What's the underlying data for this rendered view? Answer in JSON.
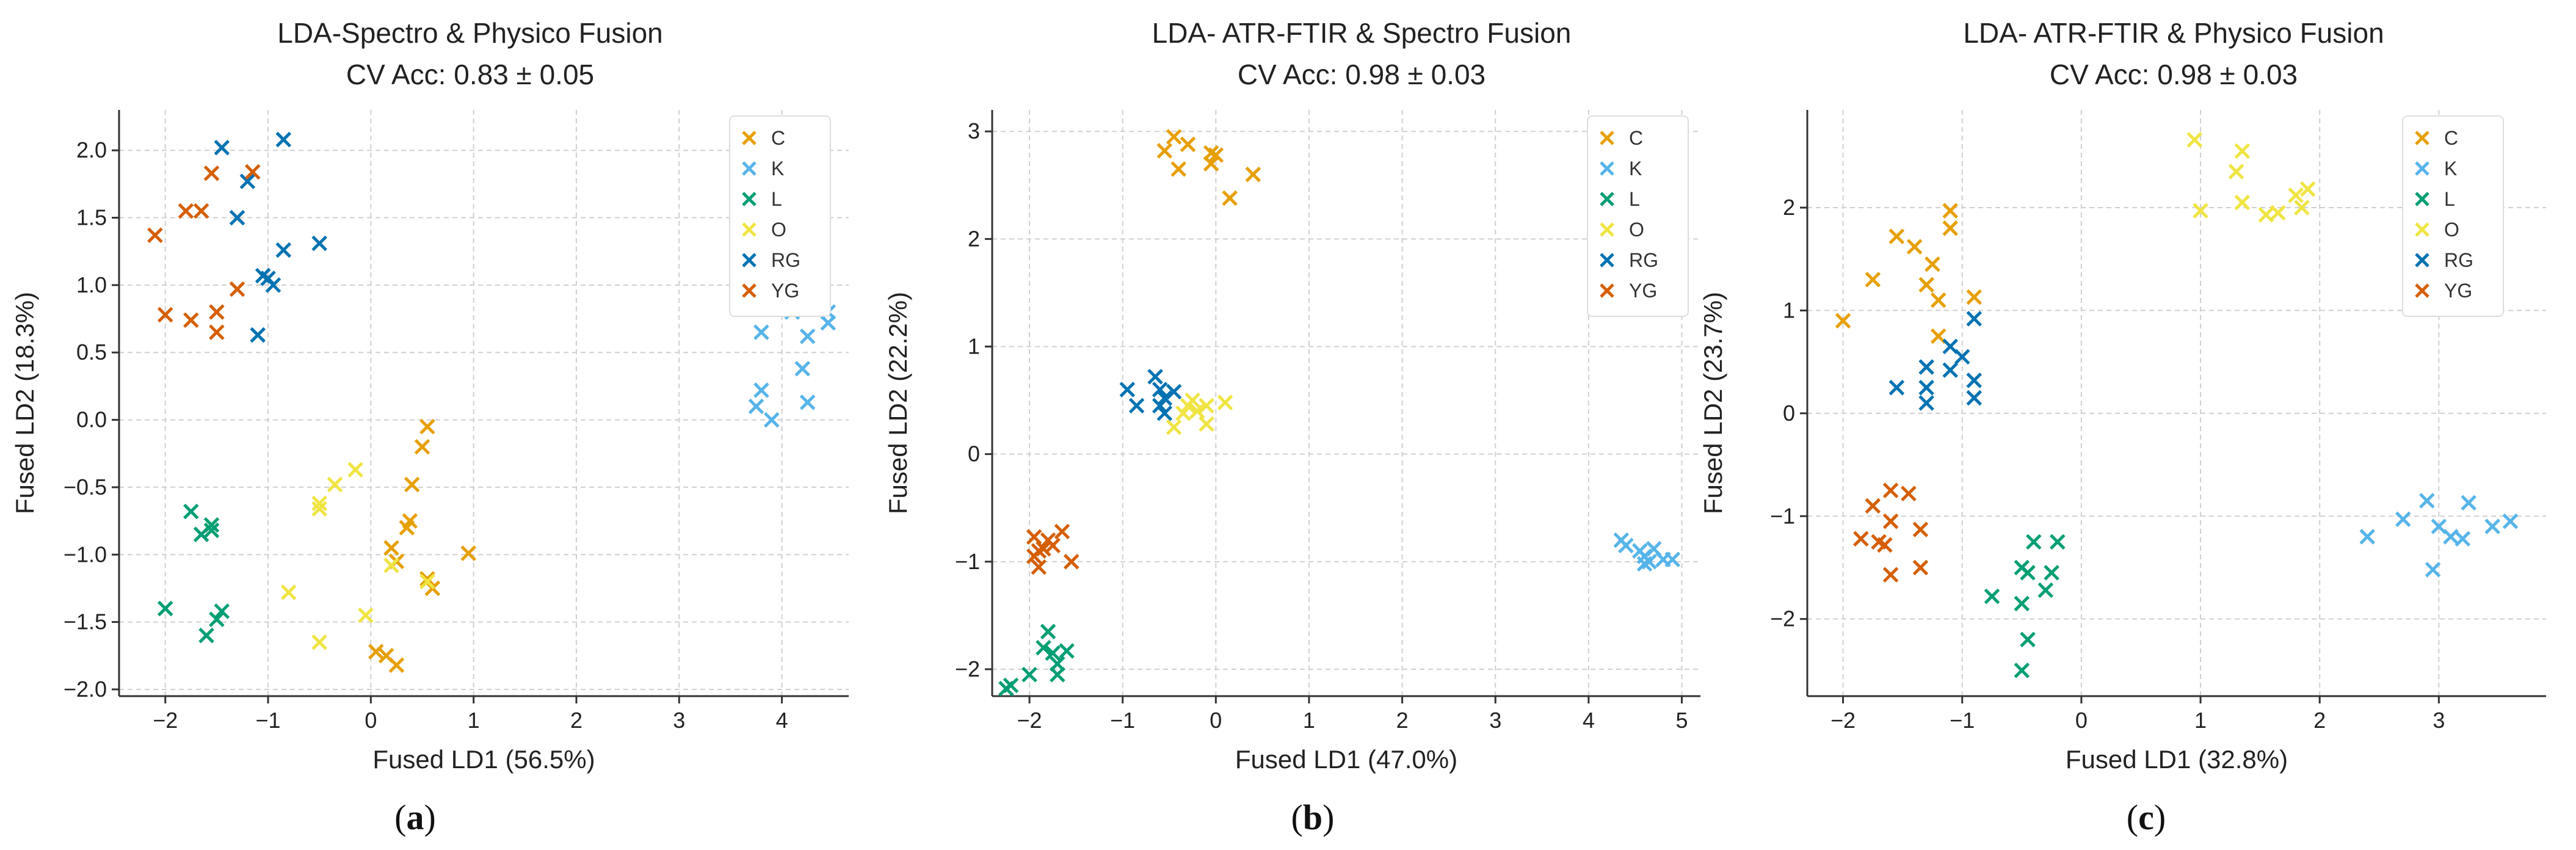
{
  "chart_data": [
    {
      "type": "scatter",
      "title": "LDA-Spectro & Physico Fusion",
      "subtitle": "CV Acc: 0.83 ± 0.05",
      "xlabel": "Fused LD1 (56.5%)",
      "ylabel": "Fused LD2 (18.3%)",
      "caption": "a",
      "xlim": [
        -2.45,
        4.65
      ],
      "ylim": [
        -2.05,
        2.3
      ],
      "xticks": [
        -2,
        -1,
        0,
        1,
        2,
        3,
        4
      ],
      "yticks": [
        -2.0,
        -1.5,
        -1.0,
        -0.5,
        0.0,
        0.5,
        1.0,
        1.5,
        2.0
      ],
      "ytick_labels": [
        "−2.0",
        "−1.5",
        "−1.0",
        "−0.5",
        "0.0",
        "0.5",
        "1.0",
        "1.5",
        "2.0"
      ],
      "xtick_labels": [
        "−2",
        "−1",
        "0",
        "1",
        "2",
        "3",
        "4"
      ],
      "grid": true,
      "legend_position": "top-right",
      "series": [
        {
          "name": "C",
          "color": "#E69F00",
          "points": [
            [
              0.55,
              -0.05
            ],
            [
              0.5,
              -0.2
            ],
            [
              0.4,
              -0.48
            ],
            [
              0.38,
              -0.75
            ],
            [
              0.35,
              -0.8
            ],
            [
              0.2,
              -0.95
            ],
            [
              0.25,
              -1.05
            ],
            [
              0.95,
              -0.99
            ],
            [
              0.55,
              -1.18
            ],
            [
              0.6,
              -1.25
            ],
            [
              0.15,
              -1.75
            ],
            [
              0.05,
              -1.72
            ],
            [
              0.25,
              -1.82
            ]
          ]
        },
        {
          "name": "K",
          "color": "#56B4E9",
          "points": [
            [
              3.8,
              0.65
            ],
            [
              4.1,
              0.8
            ],
            [
              4.25,
              0.62
            ],
            [
              4.45,
              0.72
            ],
            [
              4.45,
              0.8
            ],
            [
              4.2,
              0.38
            ],
            [
              3.75,
              0.1
            ],
            [
              3.8,
              0.22
            ],
            [
              3.9,
              0.0
            ],
            [
              4.25,
              0.13
            ]
          ]
        },
        {
          "name": "L",
          "color": "#009E73",
          "points": [
            [
              -1.75,
              -0.68
            ],
            [
              -1.65,
              -0.85
            ],
            [
              -1.55,
              -0.82
            ],
            [
              -1.55,
              -0.78
            ],
            [
              -2.0,
              -1.4
            ],
            [
              -1.5,
              -1.48
            ],
            [
              -1.45,
              -1.42
            ],
            [
              -1.6,
              -1.6
            ]
          ]
        },
        {
          "name": "O",
          "color": "#F0E442",
          "points": [
            [
              -0.35,
              -0.48
            ],
            [
              -0.15,
              -0.37
            ],
            [
              -0.5,
              -0.62
            ],
            [
              -0.5,
              -0.66
            ],
            [
              -0.8,
              -1.28
            ],
            [
              -0.05,
              -1.45
            ],
            [
              -0.5,
              -1.65
            ],
            [
              0.2,
              -1.08
            ],
            [
              0.55,
              -1.2
            ]
          ]
        },
        {
          "name": "RG",
          "color": "#0072B2",
          "points": [
            [
              -1.45,
              2.02
            ],
            [
              -0.85,
              2.08
            ],
            [
              -1.2,
              1.77
            ],
            [
              -1.3,
              1.5
            ],
            [
              -1.0,
              1.05
            ],
            [
              -1.05,
              1.07
            ],
            [
              -0.85,
              1.26
            ],
            [
              -0.5,
              1.31
            ],
            [
              -0.95,
              1.0
            ],
            [
              -1.1,
              0.63
            ]
          ]
        },
        {
          "name": "YG",
          "color": "#D55E00",
          "points": [
            [
              -1.55,
              1.83
            ],
            [
              -1.15,
              1.84
            ],
            [
              -1.65,
              1.55
            ],
            [
              -1.8,
              1.55
            ],
            [
              -2.1,
              1.37
            ],
            [
              -2.0,
              0.78
            ],
            [
              -1.75,
              0.74
            ],
            [
              -1.3,
              0.97
            ],
            [
              -1.5,
              0.8
            ],
            [
              -1.5,
              0.65
            ]
          ]
        }
      ]
    },
    {
      "type": "scatter",
      "title": "LDA- ATR-FTIR & Spectro Fusion",
      "subtitle": "CV Acc: 0.98  ± 0.03",
      "xlabel": "Fused LD1 (47.0%)",
      "ylabel": "Fused LD2 (22.2%)",
      "caption": "b",
      "xlim": [
        -2.4,
        5.2
      ],
      "ylim": [
        -2.25,
        3.2
      ],
      "xticks": [
        -2,
        -1,
        0,
        1,
        2,
        3,
        4,
        5
      ],
      "yticks": [
        -2,
        -1,
        0,
        1,
        2,
        3
      ],
      "xtick_labels": [
        "−2",
        "−1",
        "0",
        "1",
        "2",
        "3",
        "4",
        "5"
      ],
      "ytick_labels": [
        "−2",
        "−1",
        "0",
        "1",
        "2",
        "3"
      ],
      "grid": true,
      "legend_position": "top-right",
      "series": [
        {
          "name": "C",
          "color": "#E69F00",
          "points": [
            [
              -0.55,
              2.82
            ],
            [
              -0.45,
              2.95
            ],
            [
              -0.3,
              2.88
            ],
            [
              -0.4,
              2.65
            ],
            [
              -0.05,
              2.8
            ],
            [
              0.0,
              2.78
            ],
            [
              -0.05,
              2.7
            ],
            [
              0.4,
              2.6
            ],
            [
              0.15,
              2.38
            ]
          ]
        },
        {
          "name": "K",
          "color": "#56B4E9",
          "points": [
            [
              4.35,
              -0.8
            ],
            [
              4.4,
              -0.85
            ],
            [
              4.55,
              -0.9
            ],
            [
              4.6,
              -0.95
            ],
            [
              4.65,
              -1.0
            ],
            [
              4.7,
              -0.88
            ],
            [
              4.8,
              -0.98
            ],
            [
              4.9,
              -0.98
            ],
            [
              4.6,
              -1.02
            ]
          ]
        },
        {
          "name": "L",
          "color": "#009E73",
          "points": [
            [
              -1.8,
              -1.65
            ],
            [
              -1.85,
              -1.8
            ],
            [
              -1.75,
              -1.85
            ],
            [
              -1.6,
              -1.83
            ],
            [
              -1.7,
              -1.95
            ],
            [
              -1.7,
              -2.05
            ],
            [
              -2.0,
              -2.05
            ],
            [
              -2.2,
              -2.15
            ],
            [
              -2.25,
              -2.18
            ]
          ]
        },
        {
          "name": "O",
          "color": "#F0E442",
          "points": [
            [
              -0.3,
              0.45
            ],
            [
              -0.25,
              0.5
            ],
            [
              -0.2,
              0.4
            ],
            [
              -0.1,
              0.45
            ],
            [
              0.1,
              0.48
            ],
            [
              -0.1,
              0.28
            ],
            [
              -0.45,
              0.25
            ],
            [
              -0.35,
              0.38
            ]
          ]
        },
        {
          "name": "RG",
          "color": "#0072B2",
          "points": [
            [
              -0.65,
              0.72
            ],
            [
              -0.6,
              0.6
            ],
            [
              -0.55,
              0.52
            ],
            [
              -0.45,
              0.58
            ],
            [
              -0.95,
              0.6
            ],
            [
              -0.85,
              0.45
            ],
            [
              -0.6,
              0.45
            ],
            [
              -0.55,
              0.38
            ]
          ]
        },
        {
          "name": "YG",
          "color": "#D55E00",
          "points": [
            [
              -1.95,
              -0.77
            ],
            [
              -1.8,
              -0.8
            ],
            [
              -1.65,
              -0.72
            ],
            [
              -1.9,
              -0.9
            ],
            [
              -1.75,
              -0.85
            ],
            [
              -1.85,
              -0.88
            ],
            [
              -1.95,
              -0.95
            ],
            [
              -1.9,
              -1.05
            ],
            [
              -1.55,
              -1.0
            ]
          ]
        }
      ]
    },
    {
      "type": "scatter",
      "title": "LDA- ATR-FTIR & Physico Fusion",
      "subtitle": "CV Acc: 0.98  ± 0.03",
      "xlabel": "Fused LD1 (32.8%)",
      "ylabel": "Fused LD2 (23.7%)",
      "caption": "c",
      "xlim": [
        -2.3,
        3.9
      ],
      "ylim": [
        -2.75,
        2.95
      ],
      "xticks": [
        -2,
        -1,
        0,
        1,
        2,
        3
      ],
      "yticks": [
        -2,
        -1,
        0,
        1,
        2
      ],
      "xtick_labels": [
        "−2",
        "−1",
        "0",
        "1",
        "2",
        "3"
      ],
      "ytick_labels": [
        "−2",
        "−1",
        "0",
        "1",
        "2"
      ],
      "grid": true,
      "legend_position": "top-right",
      "series": [
        {
          "name": "C",
          "color": "#E69F00",
          "points": [
            [
              -1.55,
              1.72
            ],
            [
              -1.1,
              1.97
            ],
            [
              -1.1,
              1.8
            ],
            [
              -1.4,
              1.62
            ],
            [
              -1.25,
              1.45
            ],
            [
              -1.75,
              1.3
            ],
            [
              -1.3,
              1.25
            ],
            [
              -1.2,
              1.1
            ],
            [
              -2.0,
              0.9
            ],
            [
              -0.9,
              1.13
            ],
            [
              -1.2,
              0.75
            ]
          ]
        },
        {
          "name": "K",
          "color": "#56B4E9",
          "points": [
            [
              2.4,
              -1.2
            ],
            [
              2.7,
              -1.03
            ],
            [
              2.9,
              -0.85
            ],
            [
              3.0,
              -1.1
            ],
            [
              3.1,
              -1.2
            ],
            [
              3.2,
              -1.22
            ],
            [
              3.25,
              -0.87
            ],
            [
              3.45,
              -1.1
            ],
            [
              3.6,
              -1.05
            ],
            [
              2.95,
              -1.52
            ]
          ]
        },
        {
          "name": "L",
          "color": "#009E73",
          "points": [
            [
              -0.4,
              -1.25
            ],
            [
              -0.2,
              -1.25
            ],
            [
              -0.25,
              -1.55
            ],
            [
              -0.5,
              -1.5
            ],
            [
              -0.45,
              -1.55
            ],
            [
              -0.75,
              -1.78
            ],
            [
              -0.3,
              -1.72
            ],
            [
              -0.5,
              -1.85
            ],
            [
              -0.45,
              -2.2
            ],
            [
              -0.5,
              -2.5
            ]
          ]
        },
        {
          "name": "O",
          "color": "#F0E442",
          "points": [
            [
              0.95,
              2.66
            ],
            [
              1.35,
              2.55
            ],
            [
              1.3,
              2.35
            ],
            [
              1.0,
              1.97
            ],
            [
              1.35,
              2.05
            ],
            [
              1.55,
              1.93
            ],
            [
              1.65,
              1.95
            ],
            [
              1.8,
              2.12
            ],
            [
              1.9,
              2.18
            ],
            [
              1.85,
              2.0
            ]
          ]
        },
        {
          "name": "RG",
          "color": "#0072B2",
          "points": [
            [
              -0.9,
              0.92
            ],
            [
              -1.1,
              0.65
            ],
            [
              -1.0,
              0.55
            ],
            [
              -1.3,
              0.45
            ],
            [
              -1.1,
              0.42
            ],
            [
              -0.9,
              0.32
            ],
            [
              -1.55,
              0.25
            ],
            [
              -1.3,
              0.25
            ],
            [
              -1.3,
              0.1
            ],
            [
              -0.9,
              0.15
            ]
          ]
        },
        {
          "name": "YG",
          "color": "#D55E00",
          "points": [
            [
              -1.6,
              -0.75
            ],
            [
              -1.45,
              -0.78
            ],
            [
              -1.75,
              -0.9
            ],
            [
              -1.85,
              -1.22
            ],
            [
              -1.6,
              -1.05
            ],
            [
              -1.65,
              -1.28
            ],
            [
              -1.35,
              -1.13
            ],
            [
              -1.7,
              -1.25
            ],
            [
              -1.35,
              -1.5
            ],
            [
              -1.6,
              -1.57
            ]
          ]
        }
      ]
    }
  ]
}
